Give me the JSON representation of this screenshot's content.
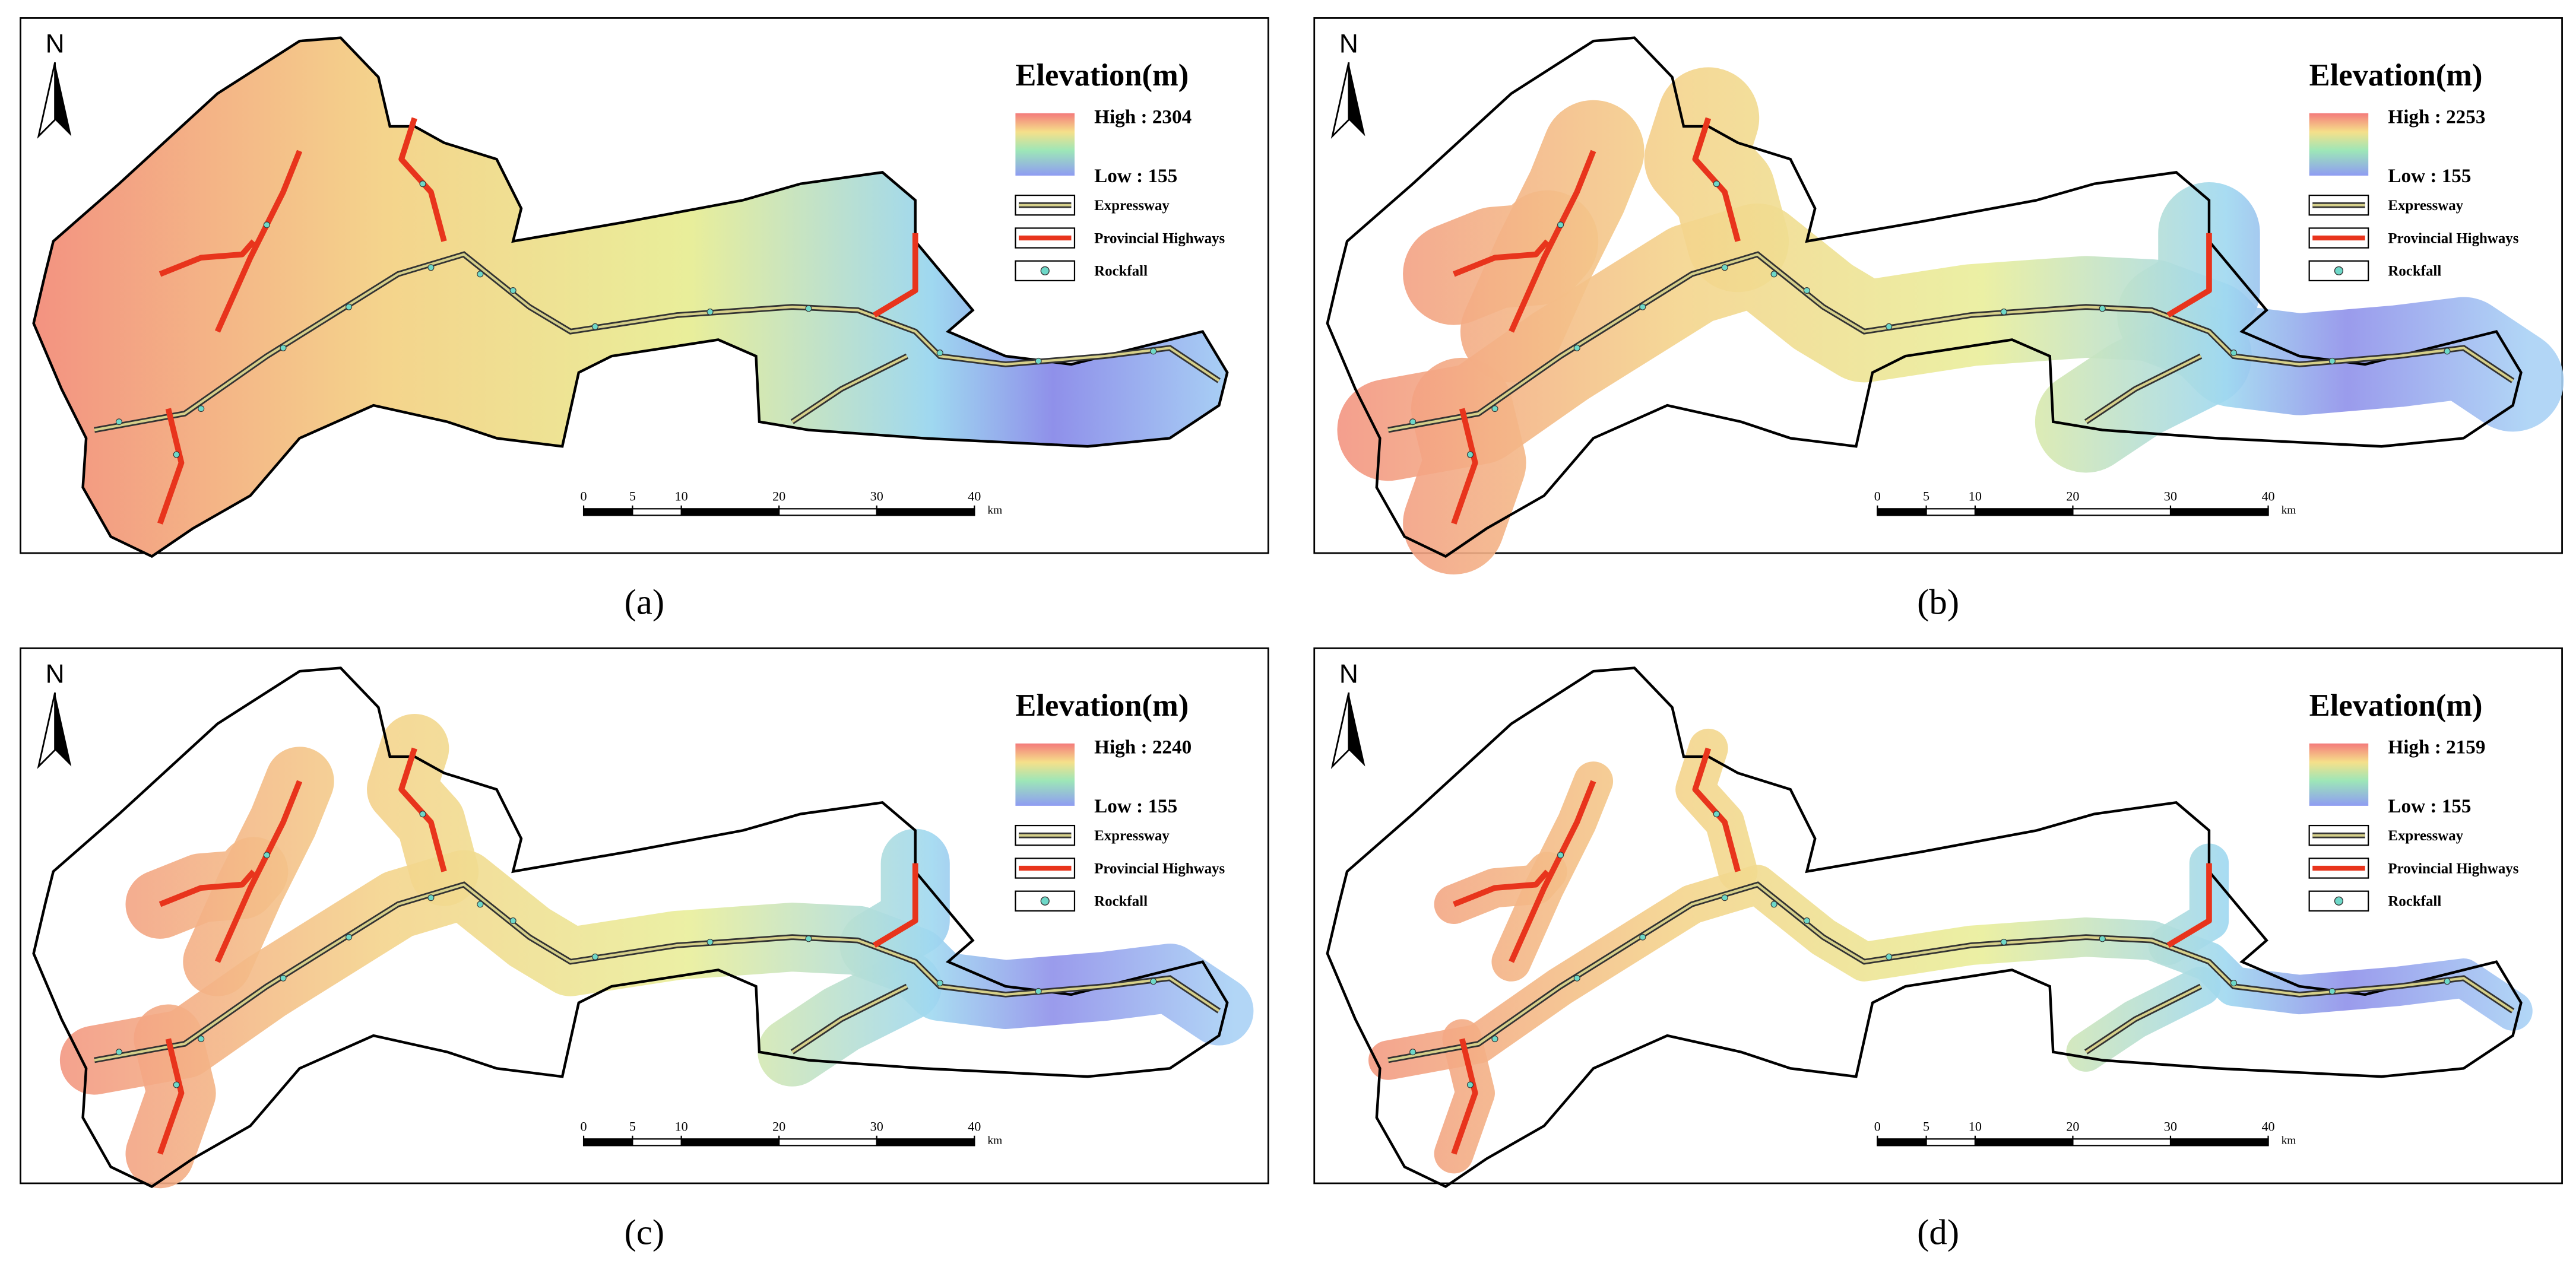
{
  "panels": [
    {
      "caption": "(a)",
      "north": "N",
      "legend": {
        "title": "Elevation(m)",
        "high": "High : 2304",
        "low": "Low : 155",
        "items": [
          "Expressway",
          "Provincial Highways",
          "Rockfall"
        ]
      },
      "scale": {
        "ticks": [
          0,
          5,
          10,
          20,
          30,
          40
        ],
        "unit": "km"
      }
    },
    {
      "caption": "(b)",
      "north": "N",
      "legend": {
        "title": "Elevation(m)",
        "high": "High : 2253",
        "low": "Low : 155",
        "items": [
          "Expressway",
          "Provincial Highways",
          "Rockfall"
        ]
      },
      "scale": {
        "ticks": [
          0,
          5,
          10,
          20,
          30,
          40
        ],
        "unit": "km"
      }
    },
    {
      "caption": "(c)",
      "north": "N",
      "legend": {
        "title": "Elevation(m)",
        "high": "High : 2240",
        "low": "Low : 155",
        "items": [
          "Expressway",
          "Provincial Highways",
          "Rockfall"
        ]
      },
      "scale": {
        "ticks": [
          0,
          5,
          10,
          20,
          30,
          40
        ],
        "unit": "km"
      }
    },
    {
      "caption": "(d)",
      "north": "N",
      "legend": {
        "title": "Elevation(m)",
        "high": "High : 2159",
        "low": "Low : 155",
        "items": [
          "Expressway",
          "Provincial Highways",
          "Rockfall"
        ]
      },
      "scale": {
        "ticks": [
          0,
          5,
          10,
          20,
          30,
          40
        ],
        "unit": "km"
      }
    }
  ]
}
